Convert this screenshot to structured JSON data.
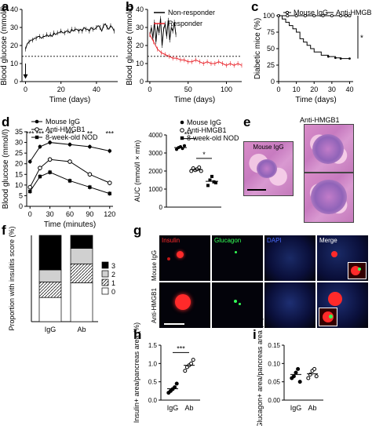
{
  "panels": {
    "a": "a",
    "b": "b",
    "c": "c",
    "d": "d",
    "e": "e",
    "f": "f",
    "g": "g",
    "h": "h",
    "i": "i"
  },
  "chart_data": [
    {
      "id": "a",
      "type": "line",
      "xlabel": "Time (days)",
      "ylabel": "Blood glucose (mmol/l)",
      "xticks": [
        0,
        20,
        40
      ],
      "yticks": [
        0,
        10,
        20,
        30,
        40
      ],
      "xlim": [
        -2,
        52
      ],
      "ylim": [
        0,
        40
      ],
      "threshold": 14,
      "arrow_at_x": 0,
      "series": [
        {
          "x": [
            0,
            1,
            2,
            3,
            4,
            5,
            6,
            7,
            8,
            9,
            10,
            11,
            12,
            13,
            14,
            15,
            16,
            17,
            18,
            19,
            20,
            21,
            22,
            23,
            24,
            25,
            26,
            27,
            28,
            29,
            30,
            31,
            32,
            33,
            34,
            35,
            36,
            37,
            38,
            39,
            40,
            41,
            42,
            43,
            44,
            45,
            46,
            47,
            48,
            49,
            50
          ],
          "values": [
            18,
            21,
            22,
            23,
            23,
            24,
            24,
            25,
            25,
            24,
            25,
            25,
            26,
            25,
            26,
            25,
            27,
            26,
            27,
            27,
            28,
            27,
            27,
            28,
            28,
            27,
            29,
            28,
            29,
            29,
            28,
            29,
            28,
            30,
            29,
            29,
            28,
            30,
            29,
            29,
            30,
            31,
            30,
            28,
            31,
            32,
            30,
            29,
            31,
            30,
            28
          ]
        }
      ]
    },
    {
      "id": "b",
      "type": "line",
      "xlabel": "Time (days)",
      "ylabel": "Blood glucose (mmol/l)",
      "xticks": [
        0,
        50,
        100
      ],
      "yticks": [
        0,
        10,
        20,
        30,
        40
      ],
      "xlim": [
        -3,
        120
      ],
      "ylim": [
        0,
        40
      ],
      "threshold": 14,
      "legend": [
        "Non-responder",
        "Responder"
      ],
      "series": [
        {
          "name": "Non-responder",
          "color": "#000000",
          "x": [
            0,
            2,
            4,
            6,
            8,
            10,
            12,
            14,
            16,
            18,
            20,
            22,
            24,
            26,
            28,
            30,
            32,
            34
          ],
          "values": [
            26,
            30,
            24,
            33,
            22,
            31,
            27,
            35,
            20,
            29,
            32,
            25,
            34,
            23,
            30,
            28,
            33,
            26
          ]
        },
        {
          "name": "Responder",
          "color": "#e8232a",
          "x": [
            0,
            5,
            10,
            15,
            20,
            25,
            30,
            35,
            40,
            45,
            50,
            55,
            60,
            65,
            70,
            75,
            80,
            85,
            90,
            95,
            100,
            105,
            110,
            115,
            120
          ],
          "values": [
            26,
            22,
            18,
            16,
            15,
            14,
            13,
            13,
            12,
            12,
            11,
            11,
            12,
            11,
            10,
            11,
            10,
            10,
            11,
            10,
            9,
            10,
            9,
            10,
            9
          ]
        }
      ]
    },
    {
      "id": "c",
      "type": "line",
      "xlabel": "Time (days)",
      "ylabel": "Diabetic mice (%)",
      "xticks": [
        0,
        10,
        20,
        30,
        40
      ],
      "yticks": [
        0,
        25,
        50,
        75,
        100
      ],
      "xlim": [
        0,
        42
      ],
      "ylim": [
        0,
        100
      ],
      "legend": [
        "Mouse IgG",
        "Anti-HMGB1"
      ],
      "significance": "*",
      "series": [
        {
          "name": "Mouse IgG",
          "x": [
            0,
            5,
            10,
            15,
            20,
            25,
            30,
            35,
            38,
            40
          ],
          "values": [
            100,
            100,
            100,
            100,
            100,
            100,
            100,
            100,
            100,
            100
          ]
        },
        {
          "name": "Anti-HMGB1",
          "x": [
            0,
            2,
            4,
            6,
            8,
            10,
            12,
            14,
            16,
            18,
            20,
            24,
            28,
            32,
            35,
            40
          ],
          "values": [
            100,
            95,
            90,
            85,
            80,
            75,
            65,
            60,
            55,
            50,
            45,
            40,
            38,
            36,
            35,
            35
          ]
        }
      ]
    },
    {
      "id": "d-left",
      "type": "line",
      "xlabel": "Time (minutes)",
      "ylabel": "Blood glucose (mmol/l)",
      "xticks": [
        0,
        30,
        60,
        90,
        120
      ],
      "yticks": [
        0,
        5,
        10,
        15,
        20,
        25,
        30,
        35
      ],
      "xlim": [
        -5,
        125
      ],
      "ylim": [
        0,
        35
      ],
      "legend": [
        "Mouse IgG",
        "Anti-HMGB1",
        "8-week-old NOD"
      ],
      "annotations": [
        {
          "x": 0,
          "text": "***"
        },
        {
          "x": 15,
          "text": "***"
        },
        {
          "x": 30,
          "text": "**"
        },
        {
          "x": 60,
          "text": "***"
        },
        {
          "x": 90,
          "text": "**"
        },
        {
          "x": 120,
          "text": "***"
        }
      ],
      "x": [
        0,
        15,
        30,
        60,
        90,
        120
      ],
      "series": [
        {
          "name": "Mouse IgG",
          "marker": "filled-circle",
          "values": [
            21,
            28,
            30,
            29,
            28,
            26
          ]
        },
        {
          "name": "Anti-HMGB1",
          "marker": "open-circle",
          "values": [
            9,
            18,
            22,
            21,
            15,
            11
          ]
        },
        {
          "name": "8-week-old NOD",
          "marker": "filled-square",
          "values": [
            7,
            14,
            16,
            12,
            9,
            6
          ]
        }
      ]
    },
    {
      "id": "d-right",
      "type": "scatter",
      "ylabel": "AUC (mmol/l × min)",
      "yticks": [
        0,
        1000,
        2000,
        3000,
        4000
      ],
      "ylim": [
        0,
        4000
      ],
      "legend": [
        "Mouse IgG",
        "Anti-HMGB1",
        "8-week-old NOD"
      ],
      "significance": [
        "***",
        "*"
      ],
      "series": [
        {
          "name": "Mouse IgG",
          "marker": "filled-circle",
          "values": [
            3200,
            3300,
            3350,
            3250,
            3400
          ],
          "mean": 3300
        },
        {
          "name": "Anti-HMGB1",
          "marker": "open-circle",
          "values": [
            2000,
            2150,
            2050,
            2100,
            2200,
            2000
          ],
          "mean": 2080
        },
        {
          "name": "8-week-old NOD",
          "marker": "filled-square",
          "values": [
            1200,
            1500,
            1700,
            1400,
            1350
          ],
          "mean": 1430
        }
      ]
    },
    {
      "id": "f",
      "type": "bar",
      "stacked": true,
      "ylabel": "Proportion with insulitis score (%)",
      "categories": [
        "IgG",
        "Ab"
      ],
      "legend": [
        "3",
        "2",
        "1",
        "0"
      ],
      "series": [
        {
          "name": "0",
          "values": [
            28,
            45
          ]
        },
        {
          "name": "1",
          "values": [
            18,
            22
          ]
        },
        {
          "name": "2",
          "values": [
            14,
            18
          ]
        },
        {
          "name": "3",
          "values": [
            40,
            15
          ]
        }
      ]
    },
    {
      "id": "h",
      "type": "scatter",
      "ylabel": "Insulin+ area/pancreas area (%)",
      "categories": [
        "IgG",
        "Ab"
      ],
      "yticks": [
        0.0,
        0.5,
        1.0,
        1.5
      ],
      "ylim": [
        0,
        1.5
      ],
      "significance": "***",
      "series": [
        {
          "name": "IgG",
          "values": [
            0.2,
            0.25,
            0.3,
            0.35,
            0.45
          ],
          "mean": 0.31
        },
        {
          "name": "Ab",
          "values": [
            0.8,
            0.9,
            0.95,
            1.0,
            1.1
          ],
          "mean": 0.95
        }
      ]
    },
    {
      "id": "i",
      "type": "scatter",
      "ylabel": "Glucagon+ area/pancreas area (%)",
      "categories": [
        "IgG",
        "Ab"
      ],
      "yticks": [
        0.0,
        0.05,
        0.1,
        0.15
      ],
      "ylim": [
        0,
        0.15
      ],
      "series": [
        {
          "name": "IgG",
          "values": [
            0.06,
            0.065,
            0.075,
            0.085,
            0.05
          ],
          "mean": 0.07
        },
        {
          "name": "Ab",
          "values": [
            0.06,
            0.07,
            0.08,
            0.085,
            0.065
          ],
          "mean": 0.072
        }
      ]
    }
  ],
  "histology": {
    "e_top_label": "Anti-HMGB1",
    "e_left_label": "Mouse IgG"
  },
  "fluorescence": {
    "columns": [
      "Insulin",
      "Glucagon",
      "DAPI",
      "Merge"
    ],
    "rows": [
      "Mouse IgG",
      "Anti-HMGB1"
    ],
    "colors": {
      "insulin": "#ff2a2a",
      "glucagon": "#33ff55",
      "dapi": "#4a6bff",
      "merge": "#ffffff"
    }
  }
}
